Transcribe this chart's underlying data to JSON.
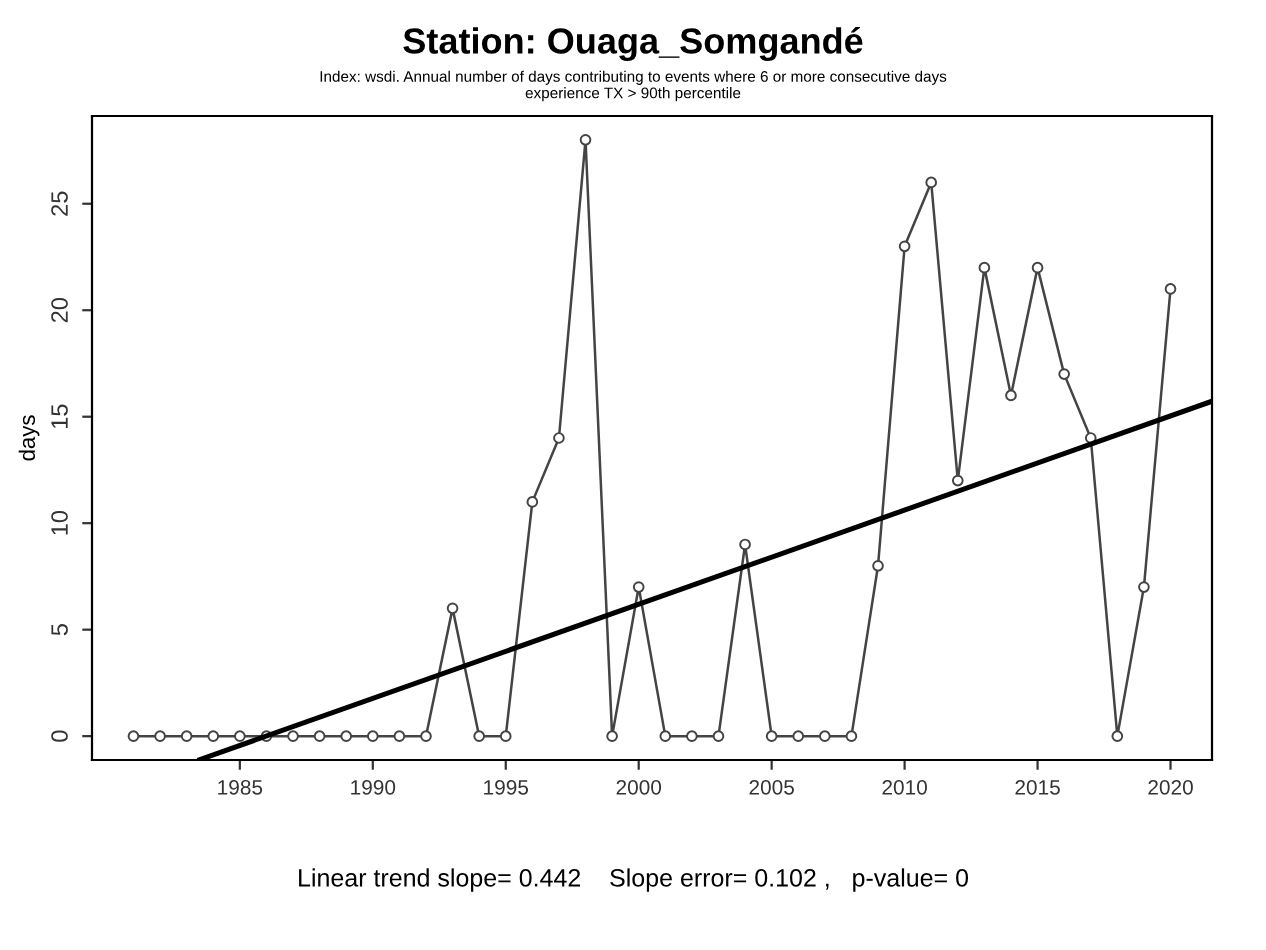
{
  "chart_data": {
    "type": "line",
    "title": "Station: Ouaga_Somgandé",
    "subtitle": "Index: wsdi. Annual number of days contributing to events where 6 or more consecutive days\nexperience TX > 90th percentile",
    "ylabel": "days",
    "annotations": [
      "Linear trend slope= 0.442    Slope error= 0.102 ,   p-value= 0"
    ],
    "x": [
      1981,
      1982,
      1983,
      1984,
      1985,
      1986,
      1987,
      1988,
      1989,
      1990,
      1991,
      1992,
      1993,
      1994,
      1995,
      1996,
      1997,
      1998,
      1999,
      2000,
      2001,
      2002,
      2003,
      2004,
      2005,
      2006,
      2007,
      2008,
      2009,
      2010,
      2011,
      2012,
      2013,
      2014,
      2015,
      2016,
      2017,
      2018,
      2019,
      2020
    ],
    "series": [
      {
        "color": "#444444",
        "marker": "circle",
        "values": [
          0,
          0,
          0,
          0,
          0,
          0,
          0,
          0,
          0,
          0,
          0,
          0,
          6,
          0,
          0,
          11,
          14,
          28,
          0,
          7,
          0,
          0,
          0,
          9,
          0,
          0,
          0,
          0,
          8,
          23,
          26,
          12,
          22,
          16,
          22,
          17,
          14,
          0,
          7,
          21
        ]
      },
      {
        "type": "line",
        "color": "#000000",
        "marker": "none",
        "x": [
          1983.5,
          2021.5
        ],
        "values": [
          -1.1,
          15.7
        ]
      }
    ],
    "xlim": [
      1979.44,
      2021.56
    ],
    "ylim": [
      -1.12,
      29.12
    ],
    "xticks": [
      1985,
      1990,
      1995,
      2000,
      2005,
      2010,
      2015,
      2020
    ],
    "yticks": [
      0,
      5,
      10,
      15,
      20,
      25
    ],
    "grid": false,
    "legend": false
  }
}
